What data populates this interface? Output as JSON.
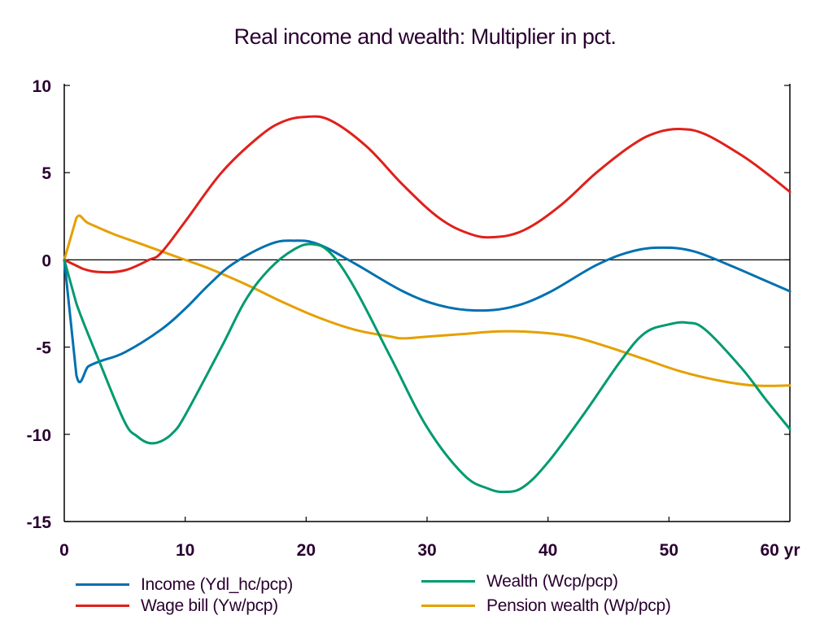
{
  "chart_data": {
    "type": "line",
    "title": "Real income and wealth: Multiplier in pct.",
    "xlabel": "",
    "ylabel": "",
    "xlim": [
      0,
      60
    ],
    "ylim": [
      -15,
      10
    ],
    "x_ticks": [
      0,
      10,
      20,
      30,
      40,
      50,
      60
    ],
    "x_tick_labels": [
      "0",
      "10",
      "20",
      "30",
      "40",
      "50",
      "60 yr"
    ],
    "y_ticks": [
      10,
      5,
      0,
      -5,
      -10,
      -15
    ],
    "y_tick_labels": [
      "10",
      "5",
      "0",
      "-5",
      "-10",
      "-15"
    ],
    "grid": false,
    "zero_line": true,
    "legend_position": "bottom",
    "series": [
      {
        "name": "Income (Ydl_hc/pcp)",
        "color": "#0070b0",
        "x": [
          0,
          1,
          2,
          3,
          5,
          8,
          10,
          12,
          14,
          17,
          19,
          21,
          24,
          28,
          31,
          34,
          37,
          40,
          44,
          47,
          49.5,
          52,
          55,
          58,
          60
        ],
        "y": [
          0,
          -6.6,
          -6.1,
          -5.8,
          -5.3,
          -4.0,
          -2.8,
          -1.4,
          -0.2,
          0.9,
          1.1,
          0.9,
          -0.2,
          -1.8,
          -2.6,
          -2.9,
          -2.7,
          -1.9,
          -0.3,
          0.5,
          0.7,
          0.5,
          -0.3,
          -1.2,
          -1.8
        ]
      },
      {
        "name": "Wage bill (Yw/pcp)",
        "color": "#e0201a",
        "x": [
          0,
          1.5,
          3,
          5,
          7,
          8,
          10,
          13,
          16,
          18,
          20,
          22,
          25,
          28,
          31,
          33.5,
          35.5,
          38,
          41,
          44,
          47,
          49,
          51,
          53,
          56,
          58,
          60
        ],
        "y": [
          0,
          -0.5,
          -0.7,
          -0.6,
          0,
          0.4,
          2.2,
          5.0,
          7.0,
          7.9,
          8.2,
          8.0,
          6.5,
          4.3,
          2.4,
          1.5,
          1.3,
          1.7,
          3.1,
          5.0,
          6.6,
          7.3,
          7.5,
          7.2,
          6.0,
          5.0,
          3.9
        ]
      },
      {
        "name": "Wealth (Wcp/pcp)",
        "color": "#009a70",
        "x": [
          0,
          1,
          3,
          5,
          6,
          7,
          8,
          9,
          10,
          13,
          15,
          17,
          19,
          20.5,
          22,
          24,
          27,
          30,
          33,
          35,
          36.5,
          38,
          40,
          43,
          46,
          48,
          50,
          51.5,
          53,
          56,
          58,
          60
        ],
        "y": [
          0,
          -2.5,
          -6.0,
          -9.3,
          -10.1,
          -10.5,
          -10.4,
          -9.9,
          -8.9,
          -5.0,
          -2.3,
          -0.5,
          0.6,
          0.9,
          0.4,
          -1.6,
          -5.6,
          -9.6,
          -12.3,
          -13.1,
          -13.3,
          -13.0,
          -11.6,
          -8.8,
          -5.8,
          -4.2,
          -3.7,
          -3.6,
          -4.0,
          -6.2,
          -8.0,
          -9.7
        ]
      },
      {
        "name": "Pension wealth (Wp/pcp)",
        "color": "#e5a000",
        "x": [
          0,
          1,
          2,
          4,
          6,
          8,
          10,
          12,
          15,
          18,
          21,
          24,
          27,
          28,
          30,
          33,
          36,
          39,
          42,
          45,
          48,
          51,
          54,
          57,
          60
        ],
        "y": [
          0,
          2.4,
          2.1,
          1.5,
          1.0,
          0.5,
          0.0,
          -0.5,
          -1.4,
          -2.4,
          -3.3,
          -4.0,
          -4.4,
          -4.5,
          -4.4,
          -4.25,
          -4.1,
          -4.15,
          -4.4,
          -5.0,
          -5.7,
          -6.4,
          -6.9,
          -7.2,
          -7.2
        ]
      }
    ]
  },
  "legend": {
    "items": [
      {
        "label": "Income (Ydl_hc/pcp)",
        "color": "#0070b0"
      },
      {
        "label": "Wage bill (Yw/pcp)",
        "color": "#e0201a"
      },
      {
        "label": "Wealth (Wcp/pcp)",
        "color": "#009a70"
      },
      {
        "label": "Pension wealth (Wp/pcp)",
        "color": "#e5a000"
      }
    ]
  }
}
